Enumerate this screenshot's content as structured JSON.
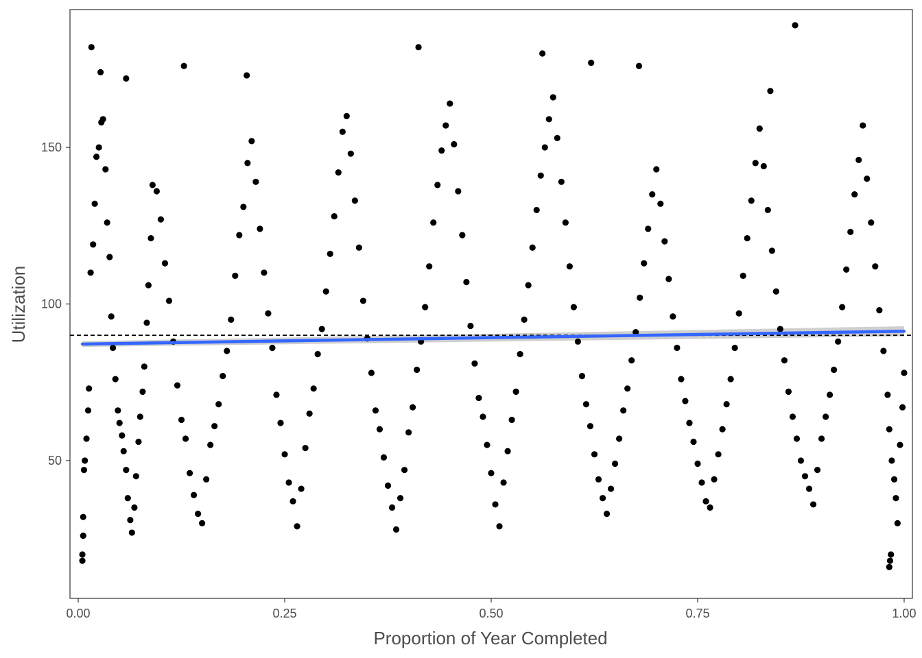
{
  "chart_data": {
    "type": "scatter",
    "title": "",
    "xlabel": "Proportion of Year Completed",
    "ylabel": "Utilization",
    "xlim": [
      -0.01,
      1.01
    ],
    "ylim": [
      6,
      194
    ],
    "x_ticks": [
      0.0,
      0.25,
      0.5,
      0.75,
      1.0
    ],
    "x_tick_labels": [
      "0.00",
      "0.25",
      "0.50",
      "0.75",
      "1.00"
    ],
    "y_ticks": [
      50,
      100,
      150
    ],
    "y_tick_labels": [
      "50",
      "100",
      "150"
    ],
    "grid": false,
    "legend": "none",
    "point_color": "#000000",
    "reference_line": {
      "y": 90,
      "style": "dashed",
      "color": "#000000"
    },
    "trend_line": {
      "method": "linear fit with confidence band",
      "color": "#3366ff",
      "band_color": "#bfbfbf",
      "x": [
        0.005,
        1.0
      ],
      "y": [
        87.2,
        91.3
      ],
      "band_halfwidth": [
        0.9,
        1.6
      ]
    },
    "series": [
      {
        "x": [
          0.005,
          0.005,
          0.006,
          0.006,
          0.007,
          0.008,
          0.01,
          0.012,
          0.013,
          0.015,
          0.018,
          0.02,
          0.022,
          0.025,
          0.028,
          0.03,
          0.033,
          0.035,
          0.038,
          0.04,
          0.042,
          0.045,
          0.048,
          0.05,
          0.053,
          0.055,
          0.058,
          0.06,
          0.063,
          0.065,
          0.068,
          0.07,
          0.073,
          0.075,
          0.078,
          0.08,
          0.083,
          0.085,
          0.088,
          0.09,
          0.095,
          0.1,
          0.105,
          0.11,
          0.115,
          0.12,
          0.125,
          0.13,
          0.135,
          0.14,
          0.145,
          0.15,
          0.155,
          0.16,
          0.165,
          0.17,
          0.175,
          0.18,
          0.185,
          0.19,
          0.195,
          0.2,
          0.205,
          0.21,
          0.215,
          0.22,
          0.225,
          0.23,
          0.235,
          0.24,
          0.245,
          0.25,
          0.255,
          0.26,
          0.265,
          0.27,
          0.275,
          0.28,
          0.285,
          0.29,
          0.295,
          0.3,
          0.305,
          0.31,
          0.315,
          0.32,
          0.325,
          0.33,
          0.335,
          0.34,
          0.345,
          0.35,
          0.355,
          0.36,
          0.365,
          0.37,
          0.375,
          0.38,
          0.385,
          0.39,
          0.395,
          0.4,
          0.405,
          0.41,
          0.415,
          0.42,
          0.425,
          0.43,
          0.435,
          0.44,
          0.445,
          0.45,
          0.455,
          0.46,
          0.465,
          0.47,
          0.475,
          0.48,
          0.485,
          0.49,
          0.495,
          0.5,
          0.505,
          0.51,
          0.515,
          0.52,
          0.525,
          0.53,
          0.535,
          0.54,
          0.545,
          0.55,
          0.555,
          0.56,
          0.565,
          0.57,
          0.575,
          0.58,
          0.585,
          0.59,
          0.595,
          0.6,
          0.605,
          0.61,
          0.615,
          0.62,
          0.625,
          0.63,
          0.635,
          0.64,
          0.645,
          0.65,
          0.655,
          0.66,
          0.665,
          0.67,
          0.675,
          0.68,
          0.685,
          0.69,
          0.695,
          0.7,
          0.705,
          0.71,
          0.715,
          0.72,
          0.725,
          0.73,
          0.735,
          0.74,
          0.745,
          0.75,
          0.755,
          0.76,
          0.765,
          0.77,
          0.775,
          0.78,
          0.785,
          0.79,
          0.795,
          0.8,
          0.805,
          0.81,
          0.815,
          0.82,
          0.825,
          0.83,
          0.835,
          0.84,
          0.845,
          0.85,
          0.855,
          0.86,
          0.865,
          0.87,
          0.875,
          0.88,
          0.885,
          0.89,
          0.895,
          0.9,
          0.905,
          0.91,
          0.915,
          0.92,
          0.925,
          0.93,
          0.935,
          0.94,
          0.945,
          0.95,
          0.955,
          0.96,
          0.965,
          0.97,
          0.975,
          0.98,
          0.982,
          0.985,
          0.988,
          0.99,
          0.992,
          0.995,
          0.998,
          1.0,
          0.016,
          0.027,
          0.058,
          0.128,
          0.204,
          0.412,
          0.562,
          0.621,
          0.679,
          0.838,
          0.868,
          0.982,
          0.983,
          0.984
        ],
        "y": [
          18,
          20,
          26,
          32,
          47,
          50,
          57,
          66,
          73,
          110,
          119,
          132,
          147,
          150,
          158,
          159,
          143,
          126,
          115,
          96,
          86,
          76,
          66,
          62,
          58,
          53,
          47,
          38,
          31,
          27,
          35,
          45,
          56,
          64,
          72,
          80,
          94,
          106,
          121,
          138,
          136,
          127,
          113,
          101,
          88,
          74,
          63,
          57,
          46,
          39,
          33,
          30,
          44,
          55,
          61,
          68,
          77,
          85,
          95,
          109,
          122,
          131,
          145,
          152,
          139,
          124,
          110,
          97,
          86,
          71,
          62,
          52,
          43,
          37,
          29,
          41,
          54,
          65,
          73,
          84,
          92,
          104,
          116,
          128,
          142,
          155,
          160,
          148,
          133,
          118,
          101,
          89,
          78,
          66,
          60,
          51,
          42,
          35,
          28,
          38,
          47,
          59,
          67,
          79,
          88,
          99,
          112,
          126,
          138,
          149,
          157,
          164,
          151,
          136,
          122,
          107,
          93,
          81,
          70,
          64,
          55,
          46,
          36,
          29,
          43,
          53,
          63,
          72,
          84,
          95,
          106,
          118,
          130,
          141,
          150,
          159,
          166,
          153,
          139,
          126,
          112,
          99,
          88,
          77,
          68,
          61,
          52,
          44,
          38,
          33,
          41,
          49,
          57,
          66,
          73,
          82,
          91,
          102,
          113,
          124,
          135,
          143,
          132,
          120,
          108,
          96,
          86,
          76,
          69,
          62,
          56,
          49,
          43,
          37,
          35,
          44,
          52,
          60,
          68,
          76,
          86,
          97,
          109,
          121,
          133,
          145,
          156,
          144,
          130,
          117,
          104,
          92,
          82,
          72,
          64,
          57,
          50,
          45,
          41,
          36,
          47,
          57,
          64,
          71,
          79,
          88,
          99,
          111,
          123,
          135,
          146,
          157,
          140,
          126,
          112,
          98,
          85,
          71,
          60,
          50,
          44,
          38,
          30,
          55,
          67,
          78,
          182,
          174,
          172,
          176,
          173,
          182,
          180,
          177,
          176,
          168,
          189,
          16,
          18,
          20
        ]
      }
    ]
  }
}
